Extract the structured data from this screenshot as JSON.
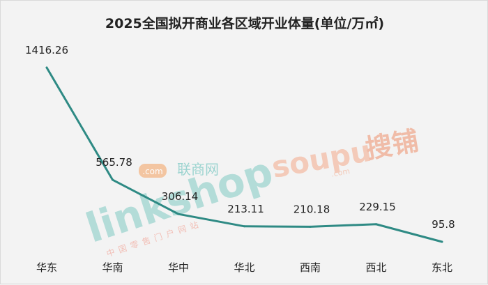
{
  "page": {
    "background": "#f3f3f3"
  },
  "chart_data": {
    "type": "line",
    "title": "2025全国拟开商业各区域开业体量(单位/万㎡)",
    "categories": [
      "华东",
      "华南",
      "华中",
      "华北",
      "西南",
      "西北",
      "东北"
    ],
    "series": [
      {
        "values": [
          1416.26,
          565.78,
          306.14,
          213.11,
          210.18,
          229.15,
          95.8
        ],
        "color": "#2e8a84"
      }
    ],
    "data_labels": [
      "1416.26",
      "565.78",
      "306.14",
      "213.11",
      "210.18",
      "229.15",
      "95.8"
    ],
    "ylim": [
      0,
      1500
    ],
    "grid": false,
    "legend": "none"
  },
  "watermarks": {
    "linkshop": {
      "dot_com": ".com",
      "brand": "linkshop",
      "cn_name": "联商网",
      "tagline": "中国零售门户网站",
      "color": "#9fd2cf"
    },
    "soupu": {
      "brand": "soupu",
      "dot_com": ".com",
      "cn_name": "搜铺",
      "color": "#f3b9a4"
    }
  }
}
